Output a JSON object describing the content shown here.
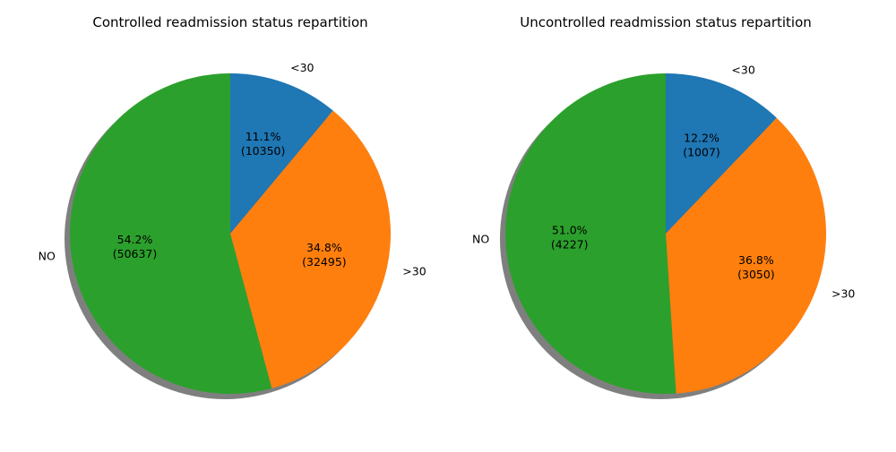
{
  "chart_data": [
    {
      "type": "pie",
      "title": "Controlled readmission status repartition",
      "categories": [
        "<30",
        ">30",
        "NO"
      ],
      "values": [
        10350,
        32495,
        50637
      ],
      "percent_labels": [
        "11.1%",
        "34.8%",
        "54.2%"
      ],
      "count_labels": [
        "(10350)",
        "(32495)",
        "(50637)"
      ],
      "colors": [
        "#1f77b4",
        "#ff7f0e",
        "#2ca02c"
      ],
      "shadow": true,
      "start_angle_deg": 90,
      "direction": "clockwise"
    },
    {
      "type": "pie",
      "title": "Uncontrolled readmission status repartition",
      "categories": [
        "<30",
        ">30",
        "NO"
      ],
      "values": [
        1007,
        3050,
        4227
      ],
      "percent_labels": [
        "12.2%",
        "36.8%",
        "51.0%"
      ],
      "count_labels": [
        "(1007)",
        "(3050)",
        "(4227)"
      ],
      "colors": [
        "#1f77b4",
        "#ff7f0e",
        "#2ca02c"
      ],
      "shadow": true,
      "start_angle_deg": 90,
      "direction": "clockwise"
    }
  ]
}
